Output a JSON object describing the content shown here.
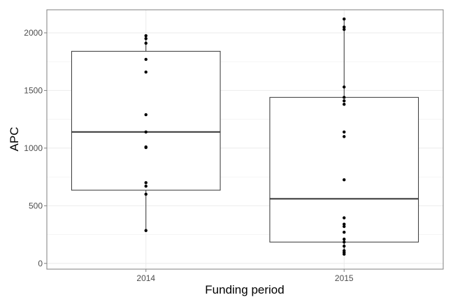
{
  "chart_data": {
    "type": "box",
    "xlabel": "Funding period",
    "ylabel": "APC",
    "categories": [
      "2014",
      "2015"
    ],
    "ylim": [
      -50,
      2200
    ],
    "yticks": [
      0,
      500,
      1000,
      1500,
      2000
    ],
    "grid": true,
    "boxes": [
      {
        "category": "2014",
        "whisker_low": 285,
        "q1": 635,
        "median": 1140,
        "q3": 1840,
        "whisker_high": 1975,
        "points": [
          285,
          600,
          670,
          700,
          1005,
          1010,
          1140,
          1290,
          1660,
          1770,
          1910,
          1950,
          1975
        ]
      },
      {
        "category": "2015",
        "whisker_low": 80,
        "q1": 185,
        "median": 560,
        "q3": 1440,
        "whisker_high": 2120,
        "points": [
          80,
          95,
          110,
          150,
          185,
          210,
          270,
          320,
          340,
          395,
          725,
          1100,
          1140,
          1380,
          1410,
          1440,
          1530,
          2030,
          2050,
          2120
        ]
      }
    ]
  },
  "colors": {
    "panel_background": "#ffffff",
    "panel_border": "#7f7f7f",
    "grid": "#ebebeb",
    "box_line": "#333333",
    "point": "#000000"
  }
}
